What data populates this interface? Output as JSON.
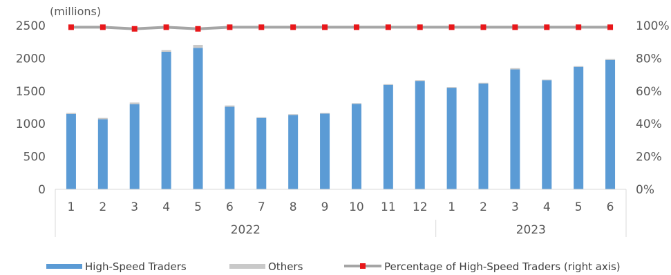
{
  "chart_data": {
    "type": "bar",
    "stacked": true,
    "unit_label": "(millions)",
    "categories": [
      "1",
      "2",
      "3",
      "4",
      "5",
      "6",
      "7",
      "8",
      "9",
      "10",
      "11",
      "12",
      "1",
      "2",
      "3",
      "4",
      "5",
      "6"
    ],
    "groups": [
      {
        "label": "2022",
        "count": 12
      },
      {
        "label": "2023",
        "count": 6
      }
    ],
    "series": [
      {
        "name": "High-Speed Traders",
        "type": "bar",
        "axis": "left",
        "color": "#5B9BD5",
        "values": [
          1150,
          1070,
          1300,
          2100,
          2160,
          1260,
          1090,
          1135,
          1155,
          1305,
          1595,
          1655,
          1550,
          1615,
          1830,
          1665,
          1870,
          1975
        ]
      },
      {
        "name": "Others",
        "type": "bar",
        "axis": "left",
        "color": "#C9C9C9",
        "values": [
          15,
          20,
          25,
          25,
          45,
          20,
          10,
          12,
          10,
          10,
          10,
          10,
          10,
          12,
          20,
          10,
          10,
          15
        ]
      },
      {
        "name": "Percentage of High-Speed Traders (right axis)",
        "type": "line",
        "axis": "right",
        "line_color": "#A5A5A5",
        "marker_color": "#E8171A",
        "values": [
          99,
          99,
          98,
          99,
          98,
          99,
          99,
          99,
          99,
          99,
          99,
          99,
          99,
          99,
          99,
          99,
          99,
          99
        ]
      }
    ],
    "y_left": {
      "min": 0,
      "max": 2500,
      "ticks": [
        "0",
        "500",
        "1000",
        "1500",
        "2000",
        "2500"
      ]
    },
    "y_right": {
      "min": 0,
      "max": 100,
      "ticks": [
        "0%",
        "20%",
        "40%",
        "60%",
        "80%",
        "100%"
      ]
    },
    "grid": false,
    "legend_position": "bottom"
  }
}
